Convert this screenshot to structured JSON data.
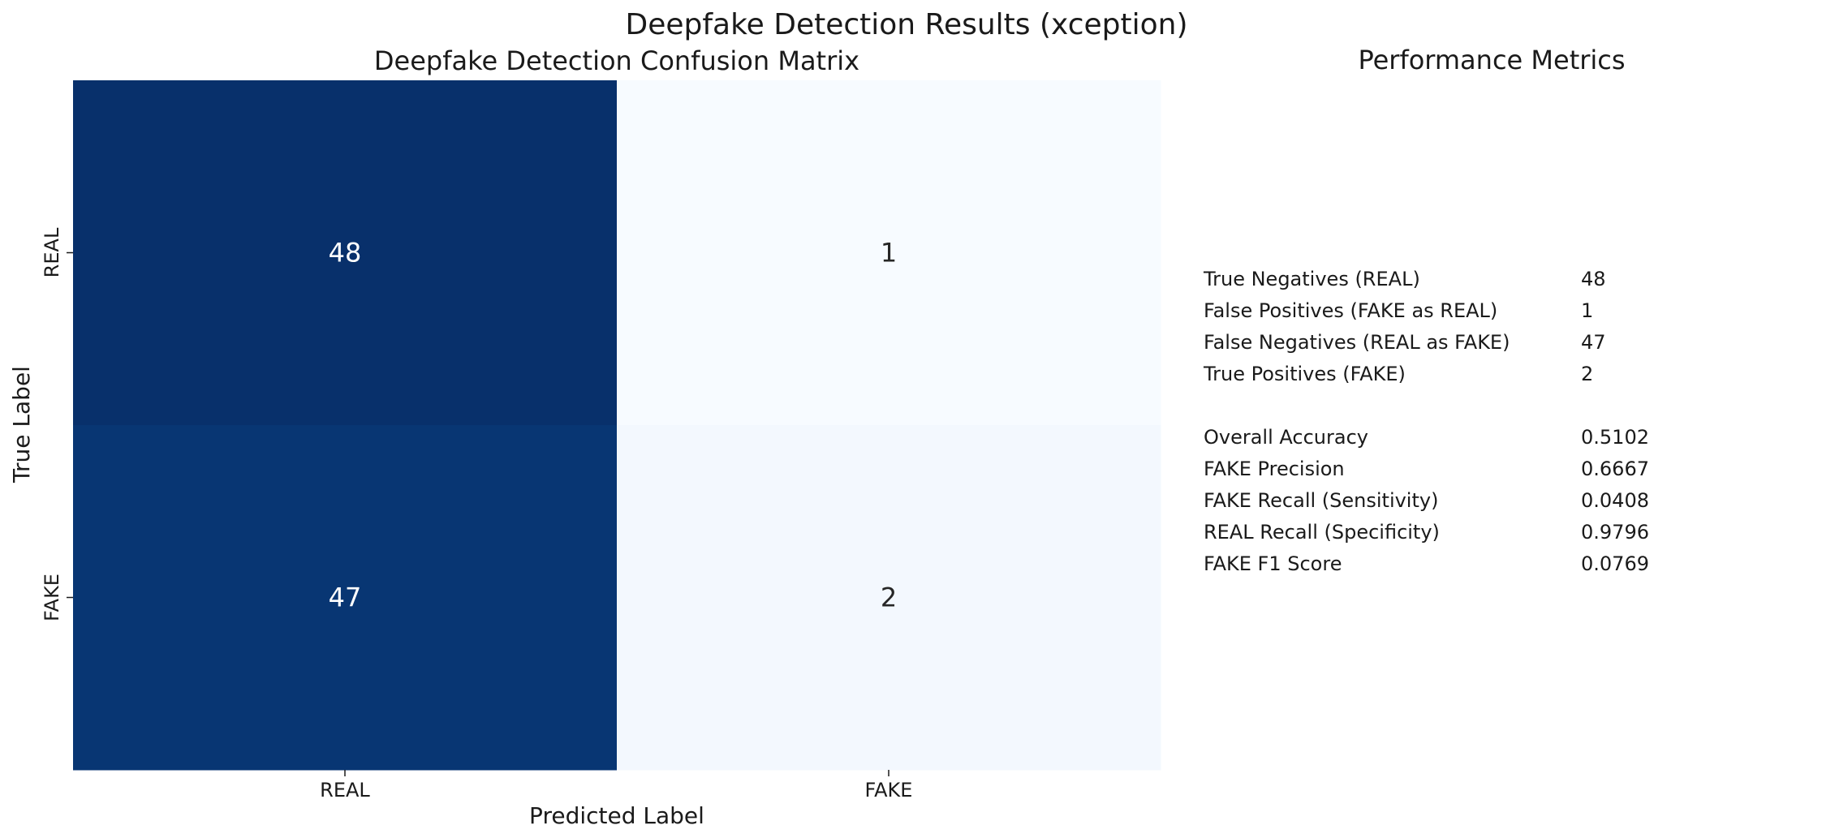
{
  "figure": {
    "suptitle": "Deepfake Detection Results (xception)"
  },
  "chart_data": {
    "type": "heatmap",
    "title": "Deepfake Detection Confusion Matrix",
    "xlabel": "Predicted Label",
    "ylabel": "True Label",
    "x_categories": [
      "REAL",
      "FAKE"
    ],
    "y_categories": [
      "REAL",
      "FAKE"
    ],
    "values": [
      [
        48,
        1
      ],
      [
        47,
        2
      ]
    ],
    "colormap": "Blues",
    "colorbar": false,
    "grid": false
  },
  "metrics_panel": {
    "title": "Performance Metrics",
    "counts": [
      {
        "label": "True Negatives (REAL)",
        "value": "48"
      },
      {
        "label": "False Positives (FAKE as REAL)",
        "value": "1"
      },
      {
        "label": "False Negatives (REAL as FAKE)",
        "value": "47"
      },
      {
        "label": "True Positives (FAKE)",
        "value": "2"
      }
    ],
    "scores": [
      {
        "label": "Overall Accuracy",
        "value": "0.5102"
      },
      {
        "label": "FAKE Precision",
        "value": "0.6667"
      },
      {
        "label": "FAKE Recall (Sensitivity)",
        "value": "0.0408"
      },
      {
        "label": "REAL Recall (Specificity)",
        "value": "0.9796"
      },
      {
        "label": "FAKE F1 Score",
        "value": "0.0769"
      }
    ]
  }
}
